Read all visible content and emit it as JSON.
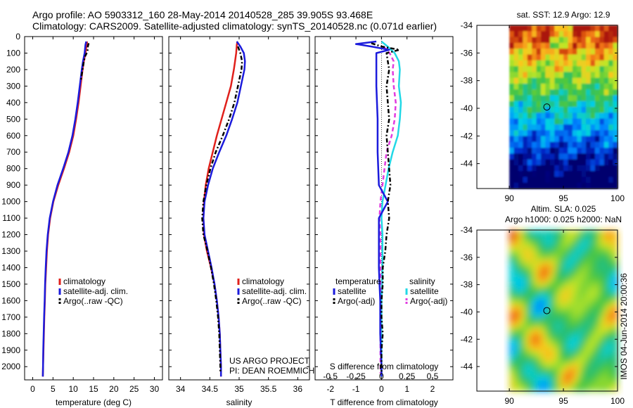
{
  "header": {
    "line1": "Argo profile: AO 5903312_160 28-May-2014 20140528_285 39.905S 93.468E",
    "line2": "Climatology: CARS2009. Satellite-adjusted climatology: synTS_20140528.nc (0.071d earlier)"
  },
  "colors": {
    "climatology": "#e0201b",
    "satellite": "#1b1bdc",
    "argo": "#000000",
    "s_satellite": "#22d8e6",
    "s_argo": "#e23be0"
  },
  "chart_data": [
    {
      "type": "line",
      "xlabel": "temperature (deg C)",
      "ylabel": "",
      "xlim": [
        -2,
        32
      ],
      "ylim": [
        0,
        2080
      ],
      "xticks": [
        0,
        5,
        10,
        15,
        20,
        25,
        30
      ],
      "yticks": [
        0,
        100,
        200,
        300,
        400,
        500,
        600,
        700,
        800,
        900,
        1000,
        1100,
        1200,
        1300,
        1400,
        1500,
        1600,
        1700,
        1800,
        1900,
        2000
      ],
      "legend": [
        "climatology",
        "satellite-adj. clim.",
        "Argo(..raw -QC)"
      ],
      "legend_placement": "lower-center",
      "series": [
        {
          "name": "climatology",
          "depth": [
            30,
            50,
            100,
            150,
            200,
            300,
            400,
            500,
            600,
            700,
            800,
            900,
            1000,
            1100,
            1200,
            1300,
            1400,
            1500,
            1600,
            1700,
            1800,
            1900,
            2000,
            2060
          ],
          "values": [
            13.4,
            13.3,
            13.0,
            12.6,
            12.3,
            11.8,
            11.3,
            10.7,
            10.0,
            9.0,
            7.7,
            6.3,
            5.1,
            4.3,
            3.8,
            3.5,
            3.3,
            3.1,
            3.0,
            2.85,
            2.75,
            2.65,
            2.55,
            2.5
          ]
        },
        {
          "name": "satellite-adj. clim.",
          "depth": [
            30,
            50,
            100,
            150,
            200,
            300,
            400,
            500,
            600,
            700,
            800,
            900,
            1000,
            1100,
            1200,
            1300,
            1400,
            1500,
            1600,
            1700,
            1800,
            1900,
            2000,
            2060
          ],
          "values": [
            13.2,
            13.0,
            12.8,
            12.4,
            12.1,
            11.6,
            11.1,
            10.5,
            9.8,
            8.8,
            7.5,
            6.1,
            5.0,
            4.2,
            3.7,
            3.4,
            3.2,
            3.05,
            2.95,
            2.8,
            2.7,
            2.6,
            2.55,
            2.5
          ]
        },
        {
          "name": "Argo(..raw -QC)",
          "depth": [
            40,
            60,
            90,
            120,
            150,
            200,
            260
          ],
          "values": [
            13.8,
            13.6,
            13.5,
            12.9,
            12.6,
            12.3,
            11.9
          ]
        }
      ]
    },
    {
      "type": "line",
      "xlabel": "salinity",
      "xlim": [
        33.8,
        36.2
      ],
      "xticks": [
        34,
        34.5,
        35,
        35.5,
        36
      ],
      "ylim": [
        0,
        2080
      ],
      "legend": [
        "climatology",
        "satellite-adj. clim.",
        "Argo(..raw -QC)"
      ],
      "legend_placement": "lower-center",
      "annotations": [
        "US ARGO PROJECT",
        "PI: DEAN ROEMMICH"
      ],
      "series": [
        {
          "name": "climatology",
          "depth": [
            30,
            50,
            100,
            150,
            200,
            300,
            400,
            500,
            600,
            700,
            800,
            900,
            1000,
            1100,
            1200,
            1300,
            1400,
            1500,
            1600,
            1700,
            1800,
            1900,
            2000,
            2060
          ],
          "values": [
            34.97,
            34.96,
            34.95,
            34.93,
            34.91,
            34.86,
            34.78,
            34.7,
            34.62,
            34.55,
            34.48,
            34.43,
            34.4,
            34.39,
            34.4,
            34.45,
            34.52,
            34.58,
            34.62,
            34.65,
            34.67,
            34.68,
            34.69,
            34.69
          ]
        },
        {
          "name": "satellite-adj. clim.",
          "depth": [
            30,
            60,
            100,
            150,
            200,
            300,
            400,
            500,
            600,
            700,
            800,
            900,
            1000,
            1100,
            1200,
            1300,
            1400,
            1500,
            1600,
            1700,
            1800,
            1900,
            2000,
            2060
          ],
          "values": [
            34.96,
            35.02,
            35.08,
            35.1,
            35.09,
            35.03,
            34.97,
            34.88,
            34.78,
            34.66,
            34.55,
            34.47,
            34.41,
            34.39,
            34.41,
            34.47,
            34.53,
            34.58,
            34.62,
            34.65,
            34.67,
            34.68,
            34.69,
            34.69
          ]
        },
        {
          "name": "Argo(..raw -QC)",
          "depth": [
            60,
            100,
            150,
            200,
            300,
            400,
            500,
            600,
            700,
            800,
            900,
            1000,
            1100,
            1200,
            1300,
            1400,
            1500,
            1600,
            1700,
            1800,
            1900,
            2000,
            2040
          ],
          "values": [
            34.98,
            35.02,
            35.05,
            35.04,
            34.98,
            34.92,
            34.83,
            34.72,
            34.6,
            34.51,
            34.44,
            34.39,
            34.37,
            34.39,
            34.46,
            34.52,
            34.57,
            34.61,
            34.64,
            34.66,
            34.67,
            34.68,
            34.68
          ]
        }
      ]
    },
    {
      "type": "line",
      "xlabel": "T difference from climatology",
      "xlabel_top": "S difference from climatology",
      "xlim": [
        -2.6,
        2.8
      ],
      "xticks": [
        -2,
        -1,
        0,
        1,
        2
      ],
      "xlim_top": [
        -0.65,
        0.7
      ],
      "xticks_top": [
        -0.5,
        -0.25,
        0,
        0.25,
        0.5
      ],
      "xticklabels_top": [
        "-0.5",
        "-0.25",
        "0",
        "0.25",
        "0.5"
      ],
      "ylim": [
        0,
        2080
      ],
      "legend_headers": [
        "temperature",
        "salinity"
      ],
      "legend": [
        "satellite",
        "Argo(-adj)",
        "satellite",
        "Argo(-adj)"
      ],
      "legend_placement": "lower-center",
      "series": [
        {
          "name": "satellite",
          "quantity": "temperature",
          "depth": [
            30,
            45,
            60,
            80,
            100,
            150,
            200,
            300,
            500,
            700,
            900,
            1000,
            1100,
            1200,
            1400,
            1600,
            1800,
            2000,
            2060
          ],
          "values": [
            -0.2,
            -1.0,
            -0.4,
            0.3,
            -0.2,
            -0.2,
            -0.2,
            -0.2,
            -0.15,
            -0.15,
            -0.1,
            0.25,
            -0.1,
            -0.1,
            -0.1,
            -0.05,
            -0.05,
            0,
            0
          ]
        },
        {
          "name": "Argo(-adj)",
          "quantity": "temperature",
          "depth": [
            40,
            60,
            80,
            100,
            150,
            200,
            300,
            400,
            500,
            600,
            700,
            800,
            900,
            1000,
            1100,
            1200,
            1300,
            1400,
            1500,
            1600,
            1700,
            1800,
            1900,
            2000,
            2040
          ],
          "values": [
            -0.4,
            0.0,
            0.7,
            0.2,
            0.25,
            0.3,
            0.2,
            0.25,
            0.3,
            0.2,
            0.25,
            0.3,
            0.35,
            0.25,
            0.3,
            0.2,
            0.15,
            0.05,
            0.05,
            0.0,
            0.0,
            0.05,
            0.0,
            0.0,
            0.0
          ]
        },
        {
          "name": "satellite",
          "quantity": "salinity",
          "depth": [
            30,
            60,
            100,
            150,
            200,
            300,
            400,
            500,
            600,
            700,
            800,
            900,
            1000,
            1100,
            1200,
            1400,
            1600,
            1800,
            2000,
            2060
          ],
          "values": [
            0.0,
            0.06,
            0.13,
            0.17,
            0.18,
            0.17,
            0.19,
            0.18,
            0.16,
            0.11,
            0.07,
            0.04,
            0.01,
            0.0,
            0.01,
            0.01,
            0.0,
            0.0,
            0.0,
            0.0
          ]
        },
        {
          "name": "Argo(-adj)",
          "quantity": "salinity",
          "depth": [
            60,
            100,
            150,
            200,
            300,
            400,
            500,
            600,
            700,
            800,
            900,
            1000,
            1100,
            1200,
            1300,
            1400,
            1600,
            1800,
            2000,
            2040
          ],
          "values": [
            0.02,
            0.08,
            0.12,
            0.11,
            0.12,
            0.14,
            0.13,
            0.1,
            0.05,
            0.03,
            0.01,
            -0.01,
            -0.02,
            -0.01,
            -0.01,
            -0.01,
            -0.01,
            -0.01,
            -0.01,
            -0.01
          ]
        }
      ]
    },
    {
      "type": "heatmap",
      "title": "sat. SST: 12.9 Argo: 12.9",
      "xlim": [
        87,
        100
      ],
      "xticks": [
        90,
        95,
        100
      ],
      "ylim": [
        -45.8,
        -34
      ],
      "yticks": [
        -34,
        -36,
        -38,
        -40,
        -42,
        -44
      ],
      "marker": {
        "lon": 93.468,
        "lat": -39.905
      },
      "data_extent_lon": [
        90,
        100
      ]
    },
    {
      "type": "heatmap",
      "title": "Altim. SLA: 0.025",
      "subtitle": "Argo h1000: 0.025 h2000: NaN",
      "xlim": [
        87,
        100
      ],
      "xticks": [
        90,
        95,
        100
      ],
      "ylim": [
        -45.8,
        -34
      ],
      "yticks": [
        -34,
        -36,
        -38,
        -40,
        -42,
        -44
      ],
      "marker": {
        "lon": 93.468,
        "lat": -39.905
      },
      "side_label": "IMOS 04-Jun-2014 20:00:36",
      "data_extent_lon": [
        90,
        100
      ]
    }
  ]
}
